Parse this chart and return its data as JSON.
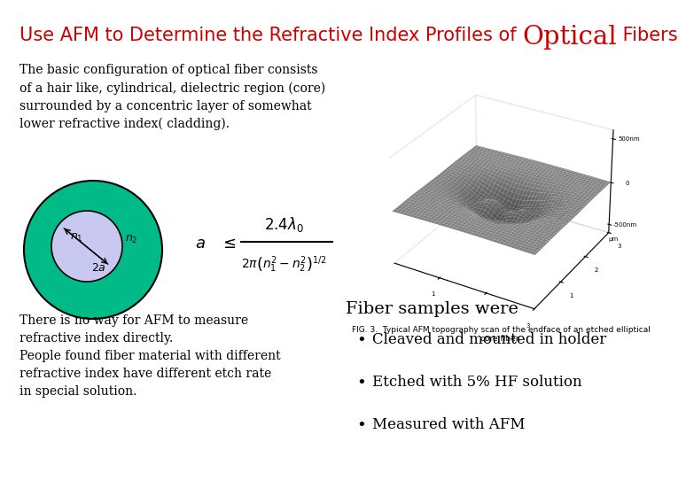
{
  "title_normal": "Use AFM to Determine the Refractive Index Profiles of ",
  "title_large": "Optical",
  "title_end": " Fibers",
  "title_color": "#cc0000",
  "title_fontsize": 15,
  "title_large_fontsize": 21,
  "bg_color": "#ffffff",
  "text_color": "#000000",
  "para1": "The basic configuration of optical fiber consists\nof a hair like, cylindrical, dielectric region (core)\nsurrounded by a concentric layer of somewhat\nlower refractive index( cladding).",
  "para_bottom_left": "There is no way for AFM to measure\nrefractive index directly.\nPeople found fiber material with different\nrefractive index have different etch rate\nin special solution.",
  "fiber_samples_title": "Fiber samples were",
  "bullet1": "Cleaved and mounted in holder",
  "bullet2": "Etched with 5% HF solution",
  "bullet3": "Measured with AFM",
  "fig_caption": "FIG. 3.  Typical AFM topography scan of the endface of an etched elliptical\ncore fiber.",
  "outer_circle_color": "#00bb88",
  "inner_circle_color": "#c8c8f0",
  "afm_cmap": "gray"
}
